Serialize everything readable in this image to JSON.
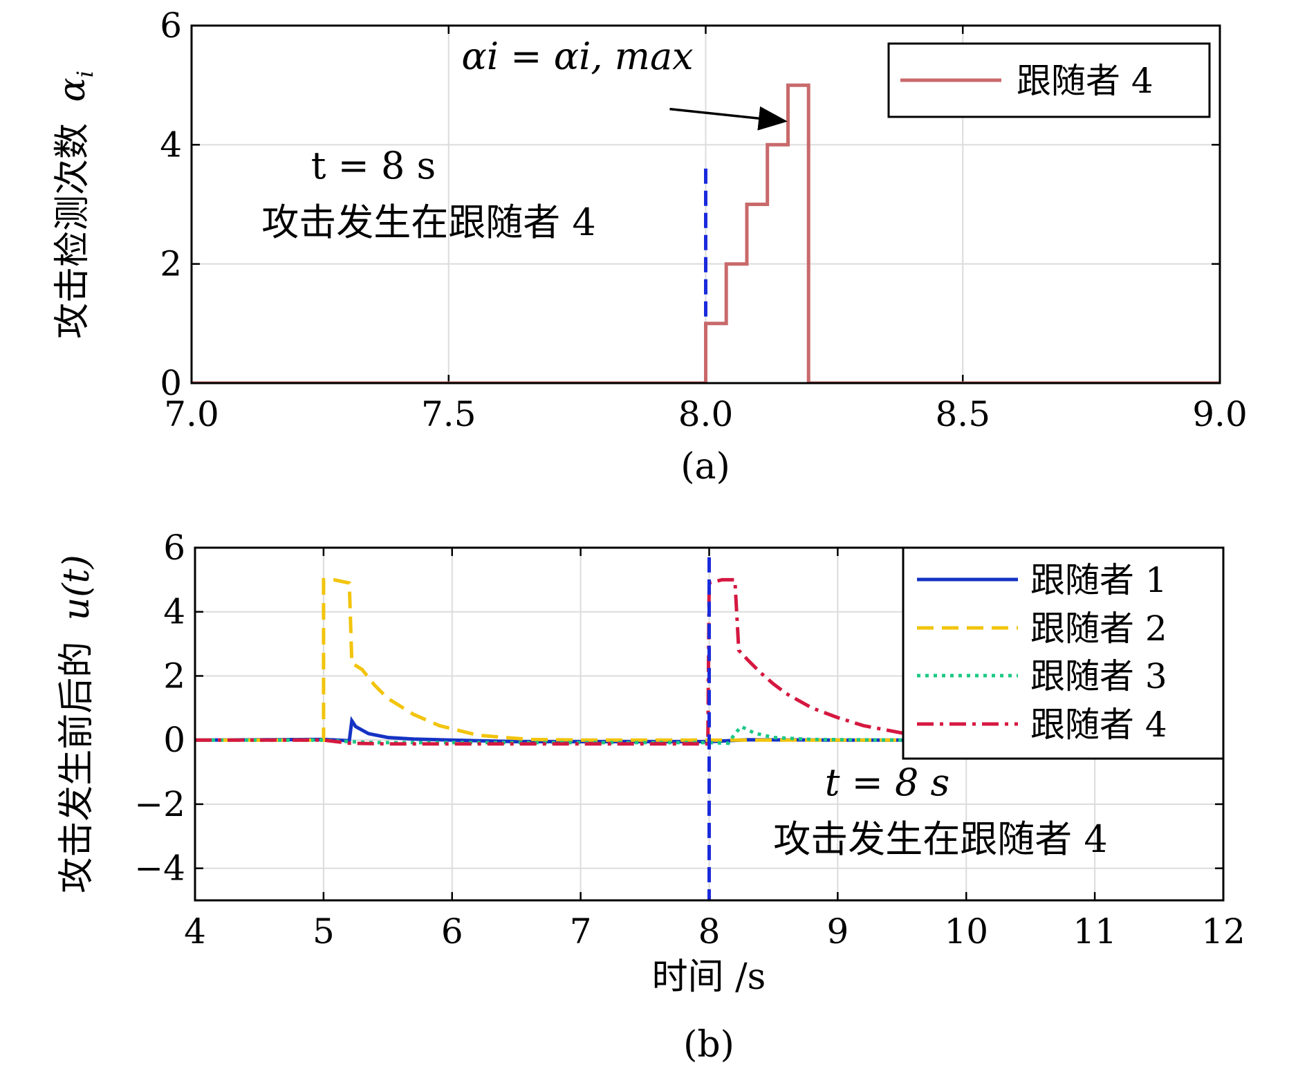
{
  "chart_data": [
    {
      "type": "line",
      "panel_caption": "(a)",
      "ylabel": "攻击检测次数",
      "ylabel_symbol": "α",
      "ylabel_subscript": "i",
      "xlim": [
        7.0,
        9.0
      ],
      "ylim": [
        0,
        6
      ],
      "x_ticks": [
        7.0,
        7.5,
        8.0,
        8.5,
        9.0
      ],
      "x_tick_labels": [
        "7.0",
        "7.5",
        "8.0",
        "8.5",
        "9.0"
      ],
      "y_ticks": [
        0,
        2,
        4,
        6
      ],
      "y_tick_labels": [
        "0",
        "2",
        "4",
        "6"
      ],
      "grid": true,
      "legend_position": "top-right",
      "series": [
        {
          "name": "跟随者 4",
          "color": "#c8696b",
          "style": "solid",
          "step": true,
          "x": [
            7.0,
            8.0,
            8.0,
            8.04,
            8.04,
            8.08,
            8.08,
            8.12,
            8.12,
            8.16,
            8.16,
            8.2,
            8.2,
            9.0
          ],
          "y": [
            0,
            0,
            1,
            1,
            2,
            2,
            3,
            3,
            4,
            4,
            5,
            5,
            0,
            0
          ]
        }
      ],
      "vline": {
        "x": 8.0,
        "y_top": 3.6,
        "color": "#1a2bdb",
        "style": "dashed"
      },
      "annotations": {
        "time_label": "t = 8 s",
        "event_label": "攻击发生在跟随者 4",
        "max_label": "αi = αi, max",
        "arrow_from": [
          7.93,
          4.6
        ],
        "arrow_to": [
          8.15,
          4.4
        ]
      }
    },
    {
      "type": "line",
      "panel_caption": "(b)",
      "xlabel": "时间 /s",
      "ylabel": "攻击发生前后的",
      "ylabel_symbol": "u(t)",
      "xlim": [
        4,
        12
      ],
      "ylim": [
        -5,
        6
      ],
      "x_ticks": [
        4,
        5,
        6,
        7,
        8,
        9,
        10,
        11,
        12
      ],
      "x_tick_labels": [
        "4",
        "5",
        "6",
        "7",
        "8",
        "9",
        "10",
        "11",
        "12"
      ],
      "y_ticks": [
        -4,
        -2,
        0,
        2,
        4,
        6
      ],
      "y_tick_labels": [
        "−4",
        "−2",
        "0",
        "2",
        "4",
        "6"
      ],
      "grid": true,
      "legend_position": "top-right",
      "series": [
        {
          "name": "跟随者 1",
          "color": "#1533c4",
          "style": "solid",
          "x": [
            4,
            5.0,
            5.2,
            5.22,
            5.25,
            5.35,
            5.5,
            5.7,
            6.0,
            6.5,
            8.0,
            8.3,
            9,
            12
          ],
          "y": [
            0,
            0.02,
            -0.02,
            0.6,
            0.42,
            0.2,
            0.08,
            0.03,
            0.0,
            -0.05,
            -0.05,
            0.01,
            0.0,
            0
          ]
        },
        {
          "name": "跟随者 2",
          "color": "#f2c40c",
          "style": "dashed",
          "x": [
            4,
            5.0,
            5.0,
            5.08,
            5.2,
            5.22,
            5.3,
            5.4,
            5.5,
            5.7,
            5.9,
            6.2,
            6.6,
            7.0,
            8.0,
            9,
            12
          ],
          "y": [
            0,
            0,
            5.0,
            5.0,
            4.9,
            2.4,
            2.2,
            1.7,
            1.3,
            0.8,
            0.45,
            0.15,
            0.02,
            0.0,
            0.0,
            0.0,
            0
          ]
        },
        {
          "name": "跟随者 3",
          "color": "#1cc884",
          "style": "dotted",
          "x": [
            4,
            5.0,
            5.2,
            5.4,
            6.0,
            8.0,
            8.15,
            8.2,
            8.25,
            8.35,
            8.5,
            8.8,
            9.5,
            12
          ],
          "y": [
            0,
            0,
            -0.05,
            -0.08,
            -0.08,
            -0.08,
            -0.1,
            0.2,
            0.42,
            0.22,
            0.08,
            0.02,
            0.0,
            0
          ]
        },
        {
          "name": "跟随者 4",
          "color": "#d51840",
          "style": "dashdot",
          "x": [
            4,
            5.0,
            5.2,
            5.5,
            6.5,
            7.99,
            8.0,
            8.1,
            8.2,
            8.23,
            8.3,
            8.4,
            8.5,
            8.6,
            8.8,
            9.0,
            9.2,
            9.5,
            9.8,
            10.2,
            10.6,
            11,
            12
          ],
          "y": [
            0,
            0,
            -0.1,
            -0.12,
            -0.12,
            -0.12,
            4.9,
            5.0,
            5.0,
            2.8,
            2.5,
            2.1,
            1.75,
            1.45,
            1.0,
            0.7,
            0.45,
            0.22,
            0.1,
            0.03,
            0.0,
            0.0,
            0
          ]
        }
      ],
      "vline": {
        "x": 8.0,
        "y_top": 5.7,
        "y_bottom": -5.0,
        "color": "#1a2bdb",
        "style": "dashed"
      },
      "annotations": {
        "time_label": "t = 8 s",
        "event_label": "攻击发生在跟随者 4"
      }
    }
  ]
}
